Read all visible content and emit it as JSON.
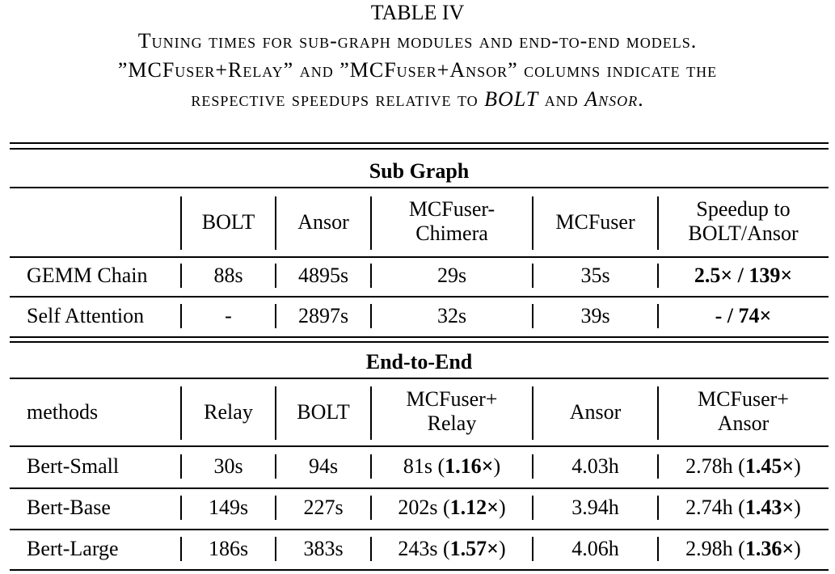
{
  "table_label": "TABLE IV",
  "caption": {
    "line1": "Tuning times for sub-graph modules and end-to-end models.",
    "line2": "”MCFuser+Relay” and ”MCFuser+Ansor” columns indicate the",
    "line3_pre": "respective speedups relative to ",
    "line3_bolt": "BOLT",
    "line3_mid": " and ",
    "line3_ansor": "Ansor",
    "line3_end": "."
  },
  "sub_graph": {
    "section_title": "Sub Graph",
    "headers": {
      "c1": "BOLT",
      "c2": "Ansor",
      "c3a": "MCFuser-",
      "c3b": "Chimera",
      "c4": "MCFuser",
      "c5a": "Speedup to",
      "c5b": "BOLT/Ansor"
    },
    "rows": [
      {
        "name": "GEMM Chain",
        "bolt": "88s",
        "ansor": "4895s",
        "chimera": "29s",
        "mcfuser": "35s",
        "speedup": "2.5× / 139×"
      },
      {
        "name": "Self Attention",
        "bolt": "-",
        "ansor": "2897s",
        "chimera": "32s",
        "mcfuser": "39s",
        "speedup": "- / 74×"
      }
    ]
  },
  "end_to_end": {
    "section_title": "End-to-End",
    "headers": {
      "c0": "methods",
      "c1": "Relay",
      "c2": "BOLT",
      "c3a": "MCFuser+",
      "c3b": "Relay",
      "c4": "Ansor",
      "c5a": "MCFuser+",
      "c5b": "Ansor"
    },
    "rows": [
      {
        "name": "Bert-Small",
        "relay": "30s",
        "bolt": "94s",
        "mr_time": "81s",
        "mr_speedup": "1.16×",
        "ansor": "4.03h",
        "ma_time": "2.78h",
        "ma_speedup": "1.45×"
      },
      {
        "name": "Bert-Base",
        "relay": "149s",
        "bolt": "227s",
        "mr_time": "202s",
        "mr_speedup": "1.12×",
        "ansor": "3.94h",
        "ma_time": "2.74h",
        "ma_speedup": "1.43×"
      },
      {
        "name": "Bert-Large",
        "relay": "186s",
        "bolt": "383s",
        "mr_time": "243s",
        "mr_speedup": "1.57×",
        "ansor": "4.06h",
        "ma_time": "2.98h",
        "ma_speedup": "1.36×"
      }
    ]
  }
}
